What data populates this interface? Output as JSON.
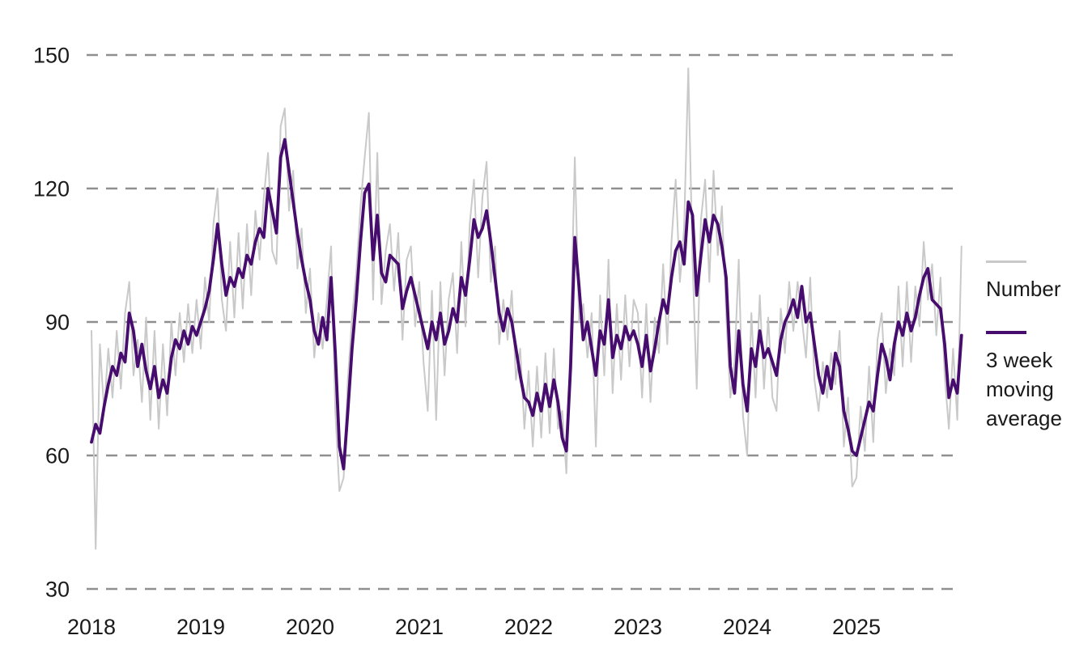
{
  "chart_data": {
    "type": "line",
    "title": "",
    "xlabel": "",
    "ylabel": "",
    "x_axis": {
      "start_year": 2018,
      "points_per_year": 26,
      "tick_labels": [
        "2018",
        "2019",
        "2020",
        "2021",
        "2022",
        "2023",
        "2024",
        "2025"
      ]
    },
    "y_axis": {
      "min": 30,
      "max": 150,
      "ticks": [
        30,
        60,
        90,
        120,
        150
      ],
      "gridlines": "dashed"
    },
    "legend_position": "right",
    "series": [
      {
        "name": "Number",
        "color": "#c9c9c9",
        "width": 2,
        "values": [
          88,
          39,
          85,
          70,
          84,
          73,
          88,
          75,
          92,
          99,
          78,
          86,
          72,
          91,
          68,
          88,
          66,
          85,
          69,
          90,
          78,
          92,
          81,
          94,
          83,
          95,
          84,
          100,
          90,
          112,
          120,
          95,
          88,
          108,
          91,
          110,
          93,
          112,
          96,
          115,
          104,
          118,
          128,
          106,
          103,
          134,
          138,
          115,
          124,
          102,
          111,
          92,
          102,
          82,
          92,
          84,
          95,
          107,
          70,
          52,
          55,
          77,
          91,
          101,
          116,
          127,
          137,
          95,
          128,
          94,
          106,
          112,
          97,
          110,
          86,
          104,
          107,
          89,
          99,
          81,
          70,
          97,
          68,
          99,
          78,
          95,
          101,
          83,
          108,
          89,
          112,
          122,
          100,
          118,
          126,
          99,
          107,
          85,
          95,
          86,
          97,
          77,
          84,
          66,
          79,
          62,
          80,
          64,
          83,
          65,
          84,
          66,
          70,
          56,
          87,
          127,
          90,
          94,
          82,
          92,
          62,
          96,
          78,
          104,
          74,
          94,
          77,
          96,
          80,
          95,
          92,
          73,
          94,
          72,
          91,
          83,
          103,
          85,
          108,
          122,
          99,
          111,
          147,
          104,
          75,
          113,
          122,
          99,
          124,
          105,
          116,
          92,
          73,
          81,
          104,
          69,
          60,
          92,
          73,
          96,
          75,
          91,
          73,
          70,
          93,
          83,
          99,
          88,
          99,
          91,
          82,
          100,
          77,
          70,
          81,
          73,
          83,
          76,
          88,
          62,
          73,
          53,
          55,
          71,
          61,
          80,
          63,
          86,
          92,
          74,
          84,
          78,
          98,
          80,
          99,
          81,
          98,
          89,
          108,
          95,
          103,
          87,
          100,
          78,
          66,
          84,
          68,
          107
        ]
      },
      {
        "name": "3 week moving average",
        "color": "#470d6e",
        "width": 3.8,
        "values": [
          63,
          67,
          65,
          71,
          76,
          80,
          78,
          83,
          81,
          92,
          88,
          80,
          85,
          79,
          75,
          80,
          73,
          77,
          74,
          82,
          86,
          84,
          88,
          85,
          89,
          87,
          90,
          93,
          97,
          104,
          112,
          103,
          96,
          100,
          98,
          102,
          100,
          105,
          103,
          108,
          111,
          109,
          120,
          115,
          110,
          127,
          131,
          124,
          117,
          110,
          104,
          99,
          95,
          88,
          85,
          91,
          86,
          100,
          83,
          62,
          57,
          70,
          84,
          95,
          108,
          119,
          121,
          104,
          114,
          101,
          99,
          105,
          104,
          103,
          93,
          97,
          100,
          96,
          92,
          88,
          84,
          90,
          86,
          92,
          85,
          88,
          93,
          90,
          100,
          96,
          104,
          113,
          109,
          111,
          115,
          108,
          100,
          92,
          88,
          93,
          90,
          84,
          78,
          73,
          72,
          69,
          74,
          70,
          76,
          71,
          77,
          72,
          64,
          61,
          80,
          109,
          98,
          86,
          90,
          84,
          78,
          88,
          85,
          95,
          82,
          87,
          84,
          89,
          86,
          88,
          85,
          80,
          87,
          79,
          84,
          90,
          95,
          92,
          100,
          106,
          108,
          103,
          117,
          114,
          96,
          105,
          113,
          108,
          114,
          112,
          107,
          100,
          80,
          74,
          88,
          76,
          70,
          84,
          80,
          88,
          82,
          84,
          81,
          78,
          86,
          90,
          92,
          95,
          91,
          98,
          90,
          92,
          85,
          78,
          74,
          80,
          75,
          83,
          80,
          70,
          66,
          61,
          60,
          64,
          68,
          72,
          70,
          78,
          85,
          82,
          77,
          85,
          90,
          87,
          92,
          88,
          91,
          96,
          100,
          102,
          95,
          94,
          93,
          85,
          73,
          77,
          74,
          87
        ]
      }
    ]
  },
  "legend": {
    "items": [
      {
        "label": "Number",
        "color": "#c9c9c9"
      },
      {
        "label": "3 week moving average",
        "color": "#470d6e"
      }
    ]
  },
  "colors": {
    "background": "#ffffff",
    "grid": "#8f8f8f",
    "text": "#1a1a1a",
    "accent_purple": "#470d6e",
    "series_gray": "#c9c9c9"
  }
}
